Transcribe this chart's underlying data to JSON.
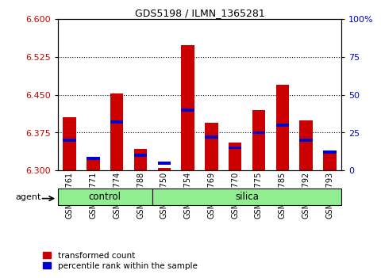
{
  "title": "GDS5198 / ILMN_1365281",
  "samples": [
    "GSM665761",
    "GSM665771",
    "GSM665774",
    "GSM665788",
    "GSM665750",
    "GSM665754",
    "GSM665769",
    "GSM665770",
    "GSM665775",
    "GSM665785",
    "GSM665792",
    "GSM665793"
  ],
  "groups": [
    "control",
    "control",
    "control",
    "control",
    "silica",
    "silica",
    "silica",
    "silica",
    "silica",
    "silica",
    "silica",
    "silica"
  ],
  "transformed_count": [
    6.405,
    6.325,
    6.453,
    6.343,
    6.305,
    6.548,
    6.395,
    6.355,
    6.42,
    6.47,
    6.4,
    6.335
  ],
  "percentile_rank": [
    20,
    8,
    32,
    10,
    5,
    40,
    22,
    15,
    25,
    30,
    20,
    12
  ],
  "ylim_left": [
    6.3,
    6.6
  ],
  "ylim_right": [
    0,
    100
  ],
  "yticks_left": [
    6.3,
    6.375,
    6.45,
    6.525,
    6.6
  ],
  "yticks_right": [
    0,
    25,
    50,
    75,
    100
  ],
  "bar_color": "#cc0000",
  "percentile_color": "#0000cc",
  "base": 6.3,
  "group_color": "#90EE90",
  "bar_width": 0.55,
  "percentile_bar_height": 0.006,
  "figsize": [
    4.83,
    3.54
  ],
  "dpi": 100
}
